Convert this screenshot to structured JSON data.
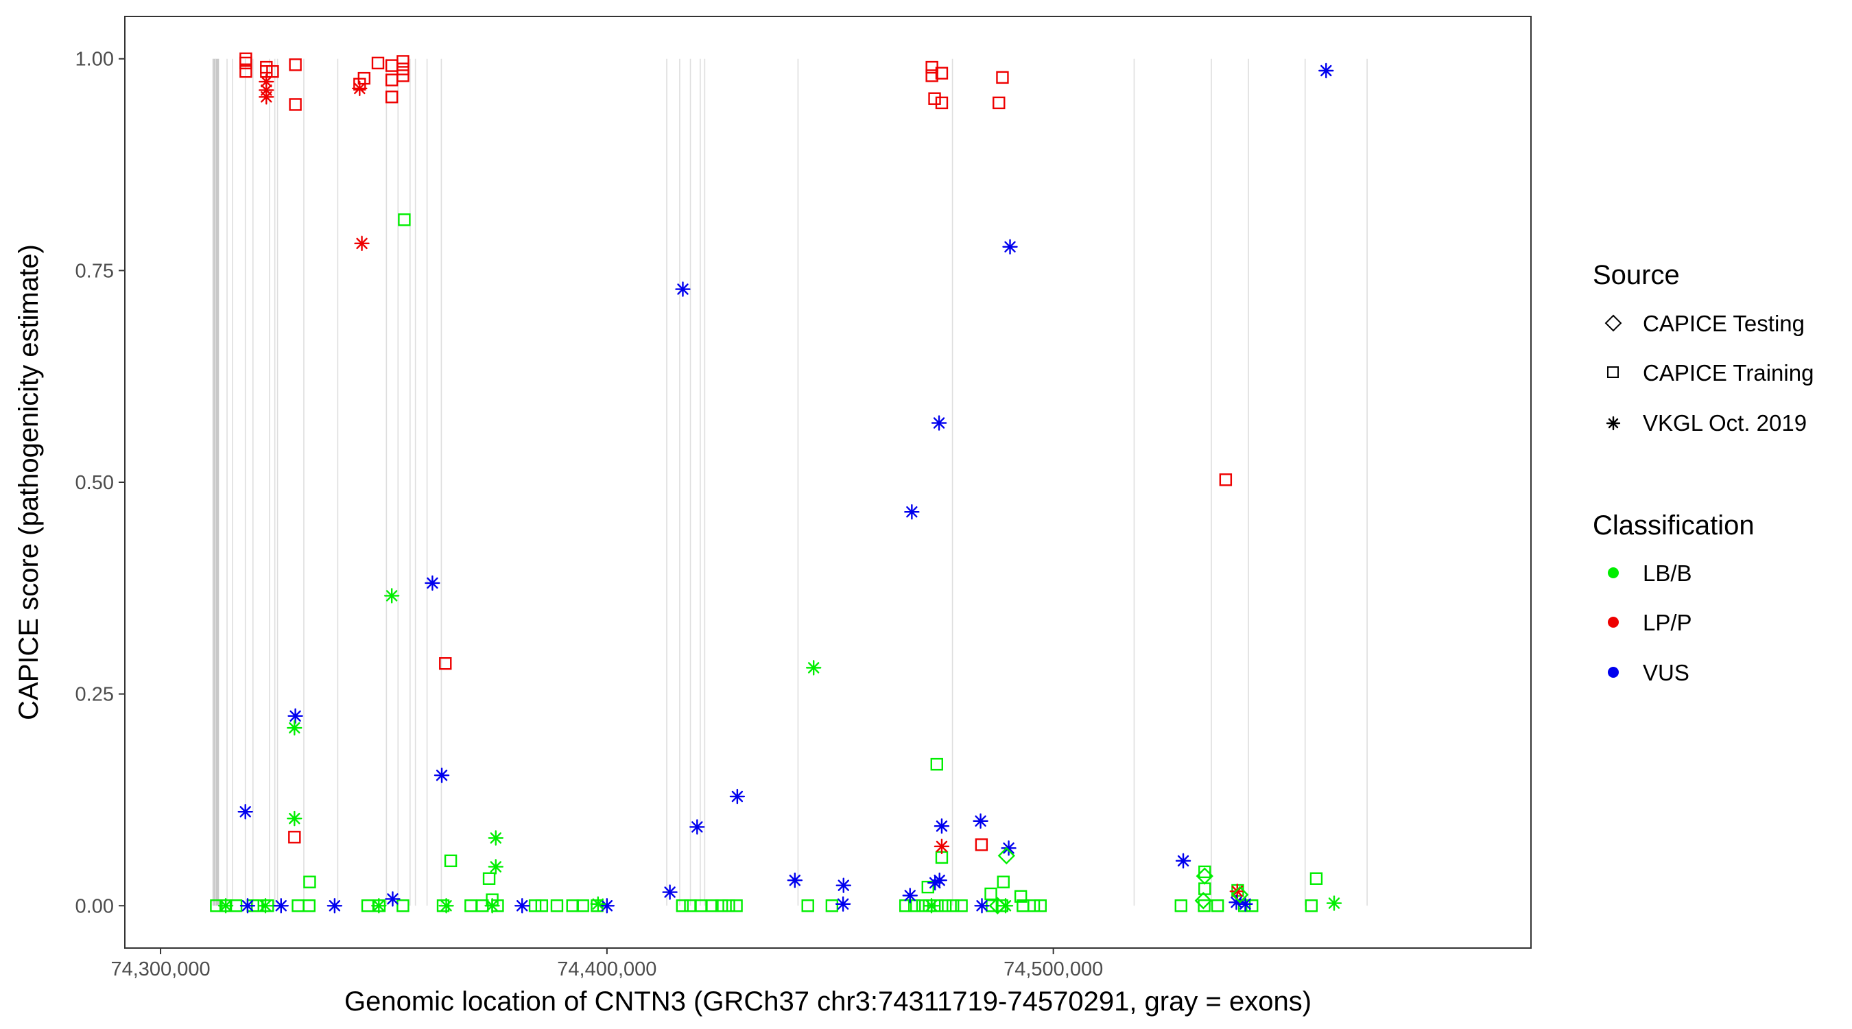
{
  "chart_data": {
    "type": "scatter",
    "title": "",
    "xlabel": "Genomic location of CNTN3 (GRCh37 chr3:74311719-74570291, gray = exons)",
    "ylabel": "CAPICE score (pathogenicity estimate)",
    "xlim": [
      74292000,
      74607000
    ],
    "ylim": [
      -0.05,
      1.05
    ],
    "x_ticks": [
      74300000,
      74400000,
      74500000
    ],
    "x_tick_labels": [
      "74,300,000",
      "74,400,000",
      "74,500,000"
    ],
    "y_ticks": [
      0,
      0.25,
      0.5,
      0.75,
      1.0
    ],
    "y_tick_labels": [
      "0.00",
      "0.25",
      "0.50",
      "0.75",
      "1.00"
    ],
    "grid": false,
    "panel_border": true,
    "exon_lines": [
      74311719,
      74312300,
      74314900,
      74316100,
      74319000,
      74320700,
      74324400,
      74325600,
      74326200,
      74332100,
      74339700,
      74350600,
      74353200,
      74355900,
      74357100,
      74359700,
      74362900,
      74413400,
      74416300,
      74418700,
      74420900,
      74421900,
      74442800,
      74477400,
      74518100,
      74535400,
      74543700,
      74556400,
      74570291
    ],
    "exon_thick": [
      74311719,
      74313100
    ],
    "legend": {
      "placement": "right",
      "source_title": "Source",
      "source_entries": [
        {
          "label": "CAPICE Testing",
          "shape": "diamond"
        },
        {
          "label": "CAPICE Training",
          "shape": "square"
        },
        {
          "label": "VKGL Oct. 2019",
          "shape": "asterisk"
        }
      ],
      "class_title": "Classification",
      "class_entries": [
        {
          "label": "LB/B",
          "color": "#00ee00"
        },
        {
          "label": "LP/P",
          "color": "#ee0000"
        },
        {
          "label": "VUS",
          "color": "#0000ee"
        }
      ]
    },
    "colors": {
      "LB/B": "#00ee00",
      "LP/P": "#ee0000",
      "VUS": "#0000ee"
    },
    "series": [
      {
        "name": "CAPICE Training",
        "shape": "square",
        "points": [
          {
            "x": 74319100,
            "y": 1.0,
            "c": "LP/P"
          },
          {
            "x": 74319100,
            "y": 0.995,
            "c": "LP/P"
          },
          {
            "x": 74319100,
            "y": 0.985,
            "c": "LP/P"
          },
          {
            "x": 74323700,
            "y": 0.99,
            "c": "LP/P"
          },
          {
            "x": 74323700,
            "y": 0.985,
            "c": "LP/P"
          },
          {
            "x": 74325100,
            "y": 0.985,
            "c": "LP/P"
          },
          {
            "x": 74330200,
            "y": 0.993,
            "c": "LP/P"
          },
          {
            "x": 74330200,
            "y": 0.946,
            "c": "LP/P"
          },
          {
            "x": 74348700,
            "y": 0.995,
            "c": "LP/P"
          },
          {
            "x": 74345600,
            "y": 0.977,
            "c": "LP/P"
          },
          {
            "x": 74344600,
            "y": 0.97,
            "c": "LP/P"
          },
          {
            "x": 74351800,
            "y": 0.992,
            "c": "LP/P"
          },
          {
            "x": 74351800,
            "y": 0.975,
            "c": "LP/P"
          },
          {
            "x": 74351800,
            "y": 0.955,
            "c": "LP/P"
          },
          {
            "x": 74354300,
            "y": 0.997,
            "c": "LP/P"
          },
          {
            "x": 74354300,
            "y": 0.988,
            "c": "LP/P"
          },
          {
            "x": 74354300,
            "y": 0.98,
            "c": "LP/P"
          },
          {
            "x": 74472800,
            "y": 0.99,
            "c": "LP/P"
          },
          {
            "x": 74472800,
            "y": 0.98,
            "c": "LP/P"
          },
          {
            "x": 74475000,
            "y": 0.983,
            "c": "LP/P"
          },
          {
            "x": 74473400,
            "y": 0.953,
            "c": "LP/P"
          },
          {
            "x": 74475000,
            "y": 0.948,
            "c": "LP/P"
          },
          {
            "x": 74488600,
            "y": 0.978,
            "c": "LP/P"
          },
          {
            "x": 74487800,
            "y": 0.948,
            "c": "LP/P"
          },
          {
            "x": 74363800,
            "y": 0.286,
            "c": "LP/P"
          },
          {
            "x": 74330000,
            "y": 0.081,
            "c": "LP/P"
          },
          {
            "x": 74483900,
            "y": 0.072,
            "c": "LP/P"
          },
          {
            "x": 74538600,
            "y": 0.503,
            "c": "LP/P"
          },
          {
            "x": 74354600,
            "y": 0.81,
            "c": "LB/B"
          },
          {
            "x": 74473900,
            "y": 0.167,
            "c": "LB/B"
          },
          {
            "x": 74475000,
            "y": 0.057,
            "c": "LB/B"
          },
          {
            "x": 74365000,
            "y": 0.053,
            "c": "LB/B"
          },
          {
            "x": 74333400,
            "y": 0.028,
            "c": "LB/B"
          },
          {
            "x": 74373600,
            "y": 0.032,
            "c": "LB/B"
          },
          {
            "x": 74488800,
            "y": 0.028,
            "c": "LB/B"
          },
          {
            "x": 74558900,
            "y": 0.032,
            "c": "LB/B"
          },
          {
            "x": 74486000,
            "y": 0.014,
            "c": "LB/B"
          },
          {
            "x": 74492700,
            "y": 0.011,
            "c": "LB/B"
          },
          {
            "x": 74533900,
            "y": 0.04,
            "c": "LB/B"
          },
          {
            "x": 74533900,
            "y": 0.02,
            "c": "LB/B"
          },
          {
            "x": 74541300,
            "y": 0.018,
            "c": "LB/B"
          },
          {
            "x": 74374300,
            "y": 0.007,
            "c": "LB/B"
          },
          {
            "x": 74471900,
            "y": 0.022,
            "c": "LB/B"
          },
          {
            "x": 74312500,
            "y": 0,
            "c": "LB/B"
          },
          {
            "x": 74314600,
            "y": 0,
            "c": "LB/B"
          },
          {
            "x": 74316900,
            "y": 0,
            "c": "LB/B"
          },
          {
            "x": 74320700,
            "y": 0,
            "c": "LB/B"
          },
          {
            "x": 74321700,
            "y": 0,
            "c": "LB/B"
          },
          {
            "x": 74324000,
            "y": 0,
            "c": "LB/B"
          },
          {
            "x": 74330800,
            "y": 0,
            "c": "LB/B"
          },
          {
            "x": 74333300,
            "y": 0,
            "c": "LB/B"
          },
          {
            "x": 74346400,
            "y": 0,
            "c": "LB/B"
          },
          {
            "x": 74349000,
            "y": 0,
            "c": "LB/B"
          },
          {
            "x": 74354300,
            "y": 0,
            "c": "LB/B"
          },
          {
            "x": 74363300,
            "y": 0,
            "c": "LB/B"
          },
          {
            "x": 74369500,
            "y": 0,
            "c": "LB/B"
          },
          {
            "x": 74372100,
            "y": 0,
            "c": "LB/B"
          },
          {
            "x": 74375500,
            "y": 0,
            "c": "LB/B"
          },
          {
            "x": 74383900,
            "y": 0,
            "c": "LB/B"
          },
          {
            "x": 74385400,
            "y": 0,
            "c": "LB/B"
          },
          {
            "x": 74388800,
            "y": 0,
            "c": "LB/B"
          },
          {
            "x": 74392300,
            "y": 0,
            "c": "LB/B"
          },
          {
            "x": 74394600,
            "y": 0,
            "c": "LB/B"
          },
          {
            "x": 74397800,
            "y": 0,
            "c": "LB/B"
          },
          {
            "x": 74416900,
            "y": 0,
            "c": "LB/B"
          },
          {
            "x": 74418700,
            "y": 0,
            "c": "LB/B"
          },
          {
            "x": 74421000,
            "y": 0,
            "c": "LB/B"
          },
          {
            "x": 74423600,
            "y": 0,
            "c": "LB/B"
          },
          {
            "x": 74425700,
            "y": 0,
            "c": "LB/B"
          },
          {
            "x": 74427300,
            "y": 0,
            "c": "LB/B"
          },
          {
            "x": 74429000,
            "y": 0,
            "c": "LB/B"
          },
          {
            "x": 74445000,
            "y": 0,
            "c": "LB/B"
          },
          {
            "x": 74450400,
            "y": 0,
            "c": "LB/B"
          },
          {
            "x": 74466900,
            "y": 0,
            "c": "LB/B"
          },
          {
            "x": 74468900,
            "y": 0,
            "c": "LB/B"
          },
          {
            "x": 74470700,
            "y": 0,
            "c": "LB/B"
          },
          {
            "x": 74472200,
            "y": 0,
            "c": "LB/B"
          },
          {
            "x": 74474000,
            "y": 0,
            "c": "LB/B"
          },
          {
            "x": 74475800,
            "y": 0,
            "c": "LB/B"
          },
          {
            "x": 74477500,
            "y": 0,
            "c": "LB/B"
          },
          {
            "x": 74479400,
            "y": 0,
            "c": "LB/B"
          },
          {
            "x": 74486300,
            "y": 0,
            "c": "LB/B"
          },
          {
            "x": 74488500,
            "y": 0,
            "c": "LB/B"
          },
          {
            "x": 74493200,
            "y": 0,
            "c": "LB/B"
          },
          {
            "x": 74495600,
            "y": 0,
            "c": "LB/B"
          },
          {
            "x": 74497100,
            "y": 0,
            "c": "LB/B"
          },
          {
            "x": 74528600,
            "y": 0,
            "c": "LB/B"
          },
          {
            "x": 74533800,
            "y": 0,
            "c": "LB/B"
          },
          {
            "x": 74536800,
            "y": 0,
            "c": "LB/B"
          },
          {
            "x": 74542800,
            "y": 0,
            "c": "LB/B"
          },
          {
            "x": 74544500,
            "y": 0,
            "c": "LB/B"
          },
          {
            "x": 74557800,
            "y": 0,
            "c": "LB/B"
          }
        ]
      },
      {
        "name": "VKGL Oct. 2019",
        "shape": "asterisk",
        "points": [
          {
            "x": 74323700,
            "y": 0.973,
            "c": "LP/P"
          },
          {
            "x": 74323700,
            "y": 0.963,
            "c": "LP/P"
          },
          {
            "x": 74323700,
            "y": 0.955,
            "c": "LP/P"
          },
          {
            "x": 74344600,
            "y": 0.965,
            "c": "LP/P"
          },
          {
            "x": 74345100,
            "y": 0.782,
            "c": "LP/P"
          },
          {
            "x": 74475000,
            "y": 0.07,
            "c": "LP/P"
          },
          {
            "x": 74541200,
            "y": 0.017,
            "c": "LP/P"
          },
          {
            "x": 74561100,
            "y": 0.986,
            "c": "VUS"
          },
          {
            "x": 74490300,
            "y": 0.778,
            "c": "VUS"
          },
          {
            "x": 74417000,
            "y": 0.728,
            "c": "VUS"
          },
          {
            "x": 74474400,
            "y": 0.57,
            "c": "VUS"
          },
          {
            "x": 74468300,
            "y": 0.465,
            "c": "VUS"
          },
          {
            "x": 74360900,
            "y": 0.381,
            "c": "VUS"
          },
          {
            "x": 74330200,
            "y": 0.224,
            "c": "VUS"
          },
          {
            "x": 74363000,
            "y": 0.154,
            "c": "VUS"
          },
          {
            "x": 74429200,
            "y": 0.129,
            "c": "VUS"
          },
          {
            "x": 74319000,
            "y": 0.111,
            "c": "VUS"
          },
          {
            "x": 74420200,
            "y": 0.093,
            "c": "VUS"
          },
          {
            "x": 74475000,
            "y": 0.094,
            "c": "VUS"
          },
          {
            "x": 74483700,
            "y": 0.1,
            "c": "VUS"
          },
          {
            "x": 74490000,
            "y": 0.068,
            "c": "VUS"
          },
          {
            "x": 74529100,
            "y": 0.053,
            "c": "VUS"
          },
          {
            "x": 74442100,
            "y": 0.03,
            "c": "VUS"
          },
          {
            "x": 74453000,
            "y": 0.024,
            "c": "VUS"
          },
          {
            "x": 74414100,
            "y": 0.016,
            "c": "VUS"
          },
          {
            "x": 74473500,
            "y": 0.027,
            "c": "VUS"
          },
          {
            "x": 74474500,
            "y": 0.03,
            "c": "VUS"
          },
          {
            "x": 74467900,
            "y": 0.012,
            "c": "VUS"
          },
          {
            "x": 74352000,
            "y": 0.008,
            "c": "VUS"
          },
          {
            "x": 74319500,
            "y": 0,
            "c": "VUS"
          },
          {
            "x": 74327000,
            "y": 0,
            "c": "VUS"
          },
          {
            "x": 74339000,
            "y": 0,
            "c": "VUS"
          },
          {
            "x": 74381000,
            "y": 0,
            "c": "VUS"
          },
          {
            "x": 74400000,
            "y": 0,
            "c": "VUS"
          },
          {
            "x": 74452900,
            "y": 0.002,
            "c": "VUS"
          },
          {
            "x": 74484000,
            "y": 0,
            "c": "VUS"
          },
          {
            "x": 74541000,
            "y": 0.004,
            "c": "VUS"
          },
          {
            "x": 74543000,
            "y": 0.002,
            "c": "VUS"
          },
          {
            "x": 74351800,
            "y": 0.366,
            "c": "LB/B"
          },
          {
            "x": 74446300,
            "y": 0.281,
            "c": "LB/B"
          },
          {
            "x": 74330000,
            "y": 0.21,
            "c": "LB/B"
          },
          {
            "x": 74330000,
            "y": 0.103,
            "c": "LB/B"
          },
          {
            "x": 74375100,
            "y": 0.08,
            "c": "LB/B"
          },
          {
            "x": 74375100,
            "y": 0.046,
            "c": "LB/B"
          },
          {
            "x": 74314600,
            "y": 0,
            "c": "LB/B"
          },
          {
            "x": 74323500,
            "y": 0,
            "c": "LB/B"
          },
          {
            "x": 74348900,
            "y": 0,
            "c": "LB/B"
          },
          {
            "x": 74364000,
            "y": 0,
            "c": "LB/B"
          },
          {
            "x": 74374300,
            "y": 0,
            "c": "LB/B"
          },
          {
            "x": 74398000,
            "y": 0.002,
            "c": "LB/B"
          },
          {
            "x": 74472700,
            "y": 0,
            "c": "LB/B"
          },
          {
            "x": 74489300,
            "y": 0,
            "c": "LB/B"
          },
          {
            "x": 74562900,
            "y": 0.003,
            "c": "LB/B"
          }
        ]
      },
      {
        "name": "CAPICE Testing",
        "shape": "diamond",
        "points": [
          {
            "x": 74489500,
            "y": 0.059,
            "c": "LB/B"
          },
          {
            "x": 74533900,
            "y": 0.035,
            "c": "LB/B"
          },
          {
            "x": 74487500,
            "y": 0,
            "c": "LB/B"
          },
          {
            "x": 74533600,
            "y": 0.006,
            "c": "LB/B"
          },
          {
            "x": 74541800,
            "y": 0.013,
            "c": "LB/B"
          }
        ]
      }
    ]
  }
}
